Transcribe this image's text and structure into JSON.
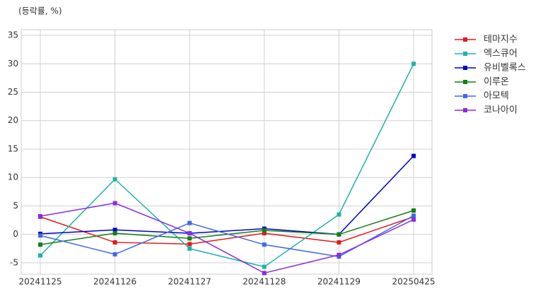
{
  "chart_data": {
    "type": "line",
    "ylabel": "(등락률, %)",
    "categories": [
      "20241125",
      "20241126",
      "20241127",
      "20241128",
      "20241129",
      "20250425"
    ],
    "series": [
      {
        "name": "테마지수",
        "color": "#e41a1c",
        "values": [
          3.1,
          -1.4,
          -1.7,
          0.2,
          -1.4,
          3.1
        ]
      },
      {
        "name": "엑스큐어",
        "color": "#20b2aa",
        "values": [
          -3.7,
          9.7,
          -2.5,
          -5.7,
          3.5,
          30.0
        ]
      },
      {
        "name": "유비벨록스",
        "color": "#0000cd",
        "values": [
          0.1,
          0.8,
          0.2,
          1.0,
          0.0,
          13.8
        ]
      },
      {
        "name": "이루온",
        "color": "#138013",
        "values": [
          -1.8,
          0.2,
          -0.7,
          0.7,
          0.0,
          4.2
        ]
      },
      {
        "name": "아모텍",
        "color": "#4169e1",
        "values": [
          -0.2,
          -3.5,
          2.0,
          -1.8,
          -3.9,
          3.3
        ]
      },
      {
        "name": "코나아이",
        "color": "#8a2be2",
        "values": [
          3.2,
          5.5,
          0.2,
          -6.8,
          -3.6,
          2.6
        ]
      }
    ],
    "ylim": [
      -7,
      36
    ],
    "yticks": [
      -5,
      0,
      5,
      10,
      15,
      20,
      25,
      30,
      35
    ],
    "grid": true,
    "legend": "outside-right"
  }
}
